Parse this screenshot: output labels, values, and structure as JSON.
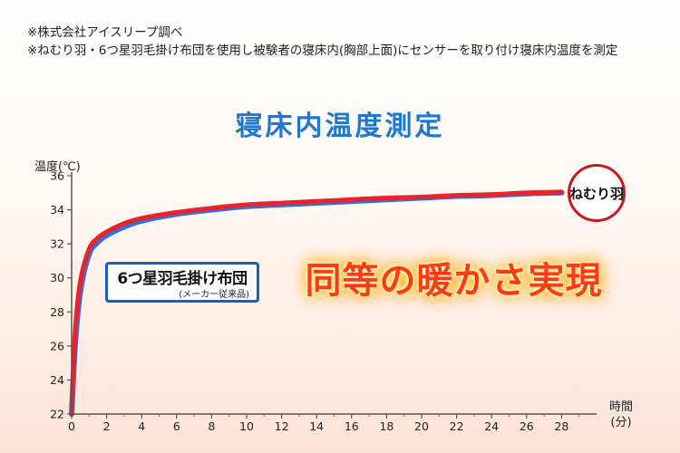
{
  "notes": [
    "※株式会社アイスリープ調べ",
    "※ねむり羽・6つ星羽毛掛け布団を使用し被験者の寝床内(胸部上面)にセンサーを取り付け寝床内温度を測定"
  ],
  "colors": {
    "title": "#1f78cf",
    "series_red": "#e8232a",
    "series_blue": "#2f6fe0",
    "banner": "#ff3a10"
  },
  "callout": {
    "main": "6つ星羽毛掛け布団",
    "sub": "(メーカー従来品)"
  },
  "banner": "同等の暖かさ実現",
  "seal": "ねむり羽",
  "chart_data": {
    "type": "line",
    "title": "寝床内温度測定",
    "ylabel": "温度(℃)",
    "xlabel": "時間\n(分)",
    "xlabel_lines": [
      "時間",
      "(分)"
    ],
    "xlim": [
      0,
      30
    ],
    "ylim": [
      22,
      36
    ],
    "xticks": [
      0,
      2,
      4,
      6,
      8,
      10,
      12,
      14,
      16,
      18,
      20,
      22,
      24,
      26,
      28
    ],
    "yticks": [
      22,
      24,
      26,
      28,
      30,
      32,
      34,
      36
    ],
    "grid": false,
    "series": [
      {
        "name": "6つ星羽毛掛け布団",
        "color": "#2f6fe0",
        "x": [
          0,
          0.2,
          0.5,
          1,
          1.5,
          2,
          3,
          4,
          6,
          8,
          10,
          12,
          14,
          16,
          18,
          20,
          22,
          24,
          26,
          28
        ],
        "y": [
          22.0,
          26.0,
          29.2,
          31.4,
          32.1,
          32.5,
          33.0,
          33.35,
          33.75,
          34.0,
          34.2,
          34.3,
          34.4,
          34.5,
          34.6,
          34.7,
          34.8,
          34.85,
          34.95,
          35.0
        ]
      },
      {
        "name": "ねむり羽",
        "color": "#e8232a",
        "x": [
          0,
          0.2,
          0.5,
          1,
          1.5,
          2,
          3,
          4,
          6,
          8,
          10,
          12,
          14,
          16,
          18,
          20,
          22,
          24,
          26,
          28
        ],
        "y": [
          22.0,
          26.8,
          29.8,
          31.7,
          32.35,
          32.7,
          33.2,
          33.5,
          33.85,
          34.1,
          34.3,
          34.4,
          34.5,
          34.6,
          34.7,
          34.75,
          34.85,
          34.9,
          35.0,
          35.05
        ]
      }
    ]
  }
}
